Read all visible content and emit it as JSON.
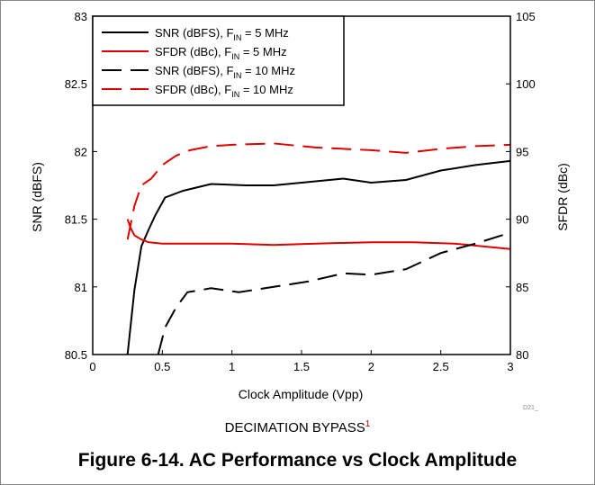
{
  "figure": {
    "subcaption": "DECIMATION BYPASS",
    "subcaption_ref": "1",
    "caption": "Figure 6-14. AC Performance vs Clock Amplitude",
    "code_label": "D21_"
  },
  "chart_data": {
    "type": "line",
    "xlabel": "Clock Amplitude (Vpp)",
    "ylabel_left": "SNR (dBFS)",
    "ylabel_right": "SFDR (dBc)",
    "xlim": [
      0,
      3
    ],
    "ylim_left": [
      80.5,
      83
    ],
    "ylim_right": [
      80,
      105
    ],
    "x_ticks": [
      "0",
      "0.5",
      "1",
      "1.5",
      "2",
      "2.5",
      "3"
    ],
    "y_left_ticks": [
      "80.5",
      "81",
      "81.5",
      "82",
      "82.5",
      "83"
    ],
    "y_right_ticks": [
      "80",
      "85",
      "90",
      "95",
      "100",
      "105"
    ],
    "grid": false,
    "legend_position": "top-left",
    "series": [
      {
        "name": "SNR (dBFS), F_IN = 5 MHz",
        "legend_main": "SNR (dBFS), F",
        "legend_sub": "IN",
        "legend_tail": " = 5 MHz",
        "axis": "left",
        "color": "#000000",
        "dash": "solid",
        "x": [
          0.25,
          0.3,
          0.35,
          0.4,
          0.45,
          0.52,
          0.65,
          0.85,
          1.1,
          1.3,
          1.6,
          1.8,
          2.0,
          2.25,
          2.5,
          2.75,
          3.0
        ],
        "y": [
          80.5,
          80.98,
          81.3,
          81.42,
          81.53,
          81.66,
          81.71,
          81.76,
          81.75,
          81.75,
          81.78,
          81.8,
          81.77,
          81.79,
          81.86,
          81.9,
          81.93
        ]
      },
      {
        "name": "SFDR (dBc), F_IN = 5 MHz",
        "legend_main": "SFDR (dBc), F",
        "legend_sub": "IN",
        "legend_tail": " = 5 MHz",
        "axis": "right",
        "color": "#e00000",
        "dash": "solid",
        "x": [
          0.25,
          0.27,
          0.3,
          0.35,
          0.4,
          0.5,
          0.6,
          0.8,
          1.0,
          1.3,
          1.6,
          2.0,
          2.3,
          2.6,
          3.0
        ],
        "y": [
          90.0,
          89.4,
          88.8,
          88.5,
          88.3,
          88.2,
          88.2,
          88.2,
          88.2,
          88.1,
          88.2,
          88.3,
          88.3,
          88.2,
          87.8
        ]
      },
      {
        "name": "SNR (dBFS), F_IN = 10 MHz",
        "legend_main": "SNR (dBFS), F",
        "legend_sub": "IN",
        "legend_tail": " = 10 MHz",
        "axis": "left",
        "color": "#000000",
        "dash": "dashed",
        "x": [
          0.47,
          0.52,
          0.6,
          0.68,
          0.85,
          1.05,
          1.3,
          1.55,
          1.8,
          2.0,
          2.25,
          2.5,
          2.75,
          3.0
        ],
        "y": [
          80.5,
          80.7,
          80.85,
          80.96,
          80.99,
          80.96,
          81.0,
          81.04,
          81.1,
          81.09,
          81.13,
          81.25,
          81.32,
          81.4
        ]
      },
      {
        "name": "SFDR (dBc), F_IN = 10 MHz",
        "legend_main": "SFDR (dBc), F",
        "legend_sub": "IN",
        "legend_tail": " = 10 MHz",
        "axis": "right",
        "color": "#e00000",
        "dash": "dashed",
        "x": [
          0.25,
          0.3,
          0.35,
          0.42,
          0.5,
          0.6,
          0.7,
          0.85,
          1.0,
          1.3,
          1.6,
          2.0,
          2.25,
          2.5,
          2.75,
          3.0
        ],
        "y": [
          88.5,
          91.0,
          92.5,
          93.0,
          94.0,
          94.7,
          95.1,
          95.4,
          95.5,
          95.6,
          95.3,
          95.1,
          94.9,
          95.2,
          95.4,
          95.5
        ]
      }
    ]
  }
}
